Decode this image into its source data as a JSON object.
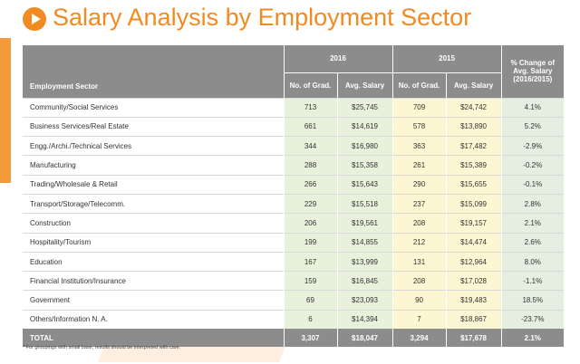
{
  "title": "Salary Analysis by Employment Sector",
  "table": {
    "groups": [
      "2016",
      "2015",
      "% Change of Avg. Salary (2016/2015)"
    ],
    "columns": [
      "Employment Sector",
      "No. of Grad.",
      "Avg. Salary",
      "No. of Grad.",
      "Avg. Salary"
    ],
    "rows": [
      [
        "Community/Social Services",
        "713",
        "$25,745",
        "709",
        "$24,742",
        "4.1%"
      ],
      [
        "Business Services/Real Estate",
        "661",
        "$14,619",
        "578",
        "$13,890",
        "5.2%"
      ],
      [
        "Engg./Archi./Technical Services",
        "344",
        "$16,980",
        "363",
        "$17,482",
        "-2.9%"
      ],
      [
        "Manufacturing",
        "288",
        "$15,358",
        "261",
        "$15,389",
        "-0.2%"
      ],
      [
        "Trading/Wholesale & Retail",
        "266",
        "$15,643",
        "290",
        "$15,655",
        "-0.1%"
      ],
      [
        "Transport/Storage/Telecomm.",
        "229",
        "$15,518",
        "237",
        "$15,099",
        "2.8%"
      ],
      [
        "Construction",
        "206",
        "$19,561",
        "208",
        "$19,157",
        "2.1%"
      ],
      [
        "Hospitality/Tourism",
        "199",
        "$14,855",
        "212",
        "$14,474",
        "2.6%"
      ],
      [
        "Education",
        "167",
        "$13,999",
        "131",
        "$12,964",
        "8.0%"
      ],
      [
        "Financial Institution/Insurance",
        "159",
        "$16,845",
        "208",
        "$17,028",
        "-1.1%"
      ],
      [
        "Government",
        "69",
        "$23,093",
        "90",
        "$19,483",
        "18.5%"
      ],
      [
        "Others/Information N. A.",
        "6",
        "$14,394",
        "7",
        "$18,867",
        "-23.7%"
      ]
    ],
    "total": [
      "TOTAL",
      "3,307",
      "$18,047",
      "3,294",
      "$17,678",
      "2.1%"
    ]
  },
  "footnote": "* For groupings with small base, results should be interpreted with care."
}
